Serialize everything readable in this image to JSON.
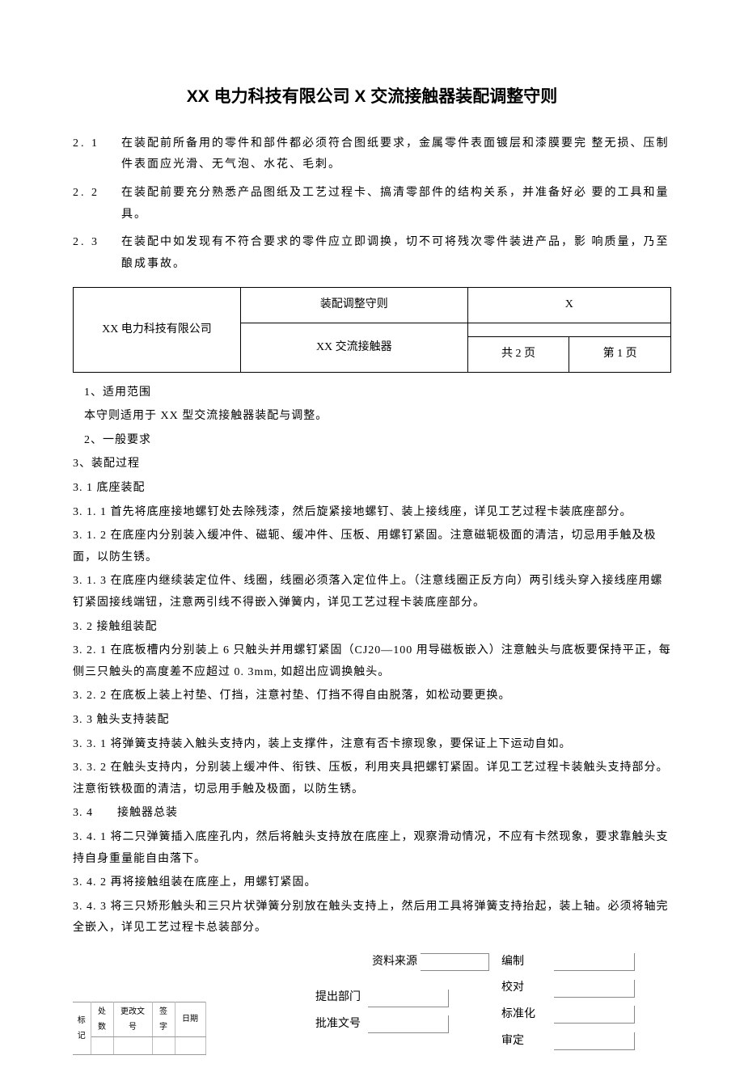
{
  "title": "XX 电力科技有限公司 X 交流接触器装配调整守则",
  "requirements": [
    {
      "num": "2. 1",
      "text": "在装配前所备用的零件和部件都必须符合图纸要求，金属零件表面镀层和漆膜要完 整无损、压制件表面应光滑、无气泡、水花、毛刺。"
    },
    {
      "num": "2. 2",
      "text": "在装配前要充分熟悉产品图纸及工艺过程卡、搞清零部件的结构关系，并准备好必 要的工具和量具。"
    },
    {
      "num": "2. 3",
      "text": "在装配中如发现有不符合要求的零件应立即调换，切不可将残次零件装进产品，影 响质量，乃至酿成事故。"
    }
  ],
  "header_table": {
    "company": "XX 电力科技有限公司",
    "rule_title": "装配调整守则",
    "code": "X",
    "product": "XX 交流接触器",
    "total_pages": "共 2 页",
    "current_page": "第 1 页"
  },
  "body": [
    {
      "cls": "indent",
      "text": "1、适用范围"
    },
    {
      "cls": "indent",
      "text": "本守则适用于 XX 型交流接触器装配与调整。"
    },
    {
      "cls": "indent",
      "text": "2、一般要求"
    },
    {
      "cls": "",
      "text": "3、装配过程"
    },
    {
      "cls": "",
      "text": "3. 1 底座装配"
    },
    {
      "cls": "",
      "text": "3. 1. 1 首先将底座接地螺钉处去除残漆，然后旋紧接地螺钉、装上接线座，详见工艺过程卡装底座部分。"
    },
    {
      "cls": "",
      "text": "3. 1. 2 在底座内分别装入缓冲件、磁轭、缓冲件、压板、用螺钉紧固。注意磁轭极面的清洁，切忌用手触及极面，以防生锈。"
    },
    {
      "cls": "",
      "text": "3. 1. 3 在底座内继续装定位件、线圈，线圈必须落入定位件上。（注意线圈正反方向）两引线头穿入接线座用螺钉紧固接线端钮，注意两引线不得嵌入弹簧内，详见工艺过程卡装底座部分。"
    },
    {
      "cls": "",
      "text": "3. 2 接触组装配"
    },
    {
      "cls": "",
      "text": "3. 2. 1 在底板槽内分别装上 6 只触头并用螺钉紧固（CJ20—100 用导磁板嵌入）注意触头与底板要保持平正，每侧三只触头的高度差不应超过 0. 3mm, 如超出应调换触头。"
    },
    {
      "cls": "",
      "text": "3. 2. 2 在底板上装上衬垫、仃挡，注意衬垫、仃挡不得自由脱落，如松动要更换。"
    },
    {
      "cls": "",
      "text": "3. 3 触头支持装配"
    },
    {
      "cls": "",
      "text": "3. 3. 1 将弹簧支持装入触头支持内，装上支撑件，注意有否卡擦现象，要保证上下运动自如。"
    },
    {
      "cls": "",
      "text": "3. 3. 2 在触头支持内，分别装上缓冲件、衔铁、压板，利用夹具把螺钉紧固。详见工艺过程卡装触头支持部分。注意衔铁极面的清洁，切忌用手触及极面，以防生锈。"
    },
    {
      "cls": "",
      "text": "3. 4　　接触器总装"
    },
    {
      "cls": "",
      "text": "3. 4. 1 将二只弹簧插入底座孔内，然后将触头支持放在底座上，观察滑动情况，不应有卡然现象，要求靠触头支持自身重量能自由落下。"
    },
    {
      "cls": "",
      "text": "3. 4. 2 再将接触组装在底座上，用螺钉紧固。"
    },
    {
      "cls": "",
      "text": "3. 4. 3 将三只矫形触头和三只片状弹簧分别放在触头支持上，然后用工具将弹簧支持抬起，装上轴。必须将轴完全嵌入，详见工艺过程卡总装部分。"
    }
  ],
  "footer": {
    "source_label": "资料来源",
    "dept_label": "提出部门",
    "approval_label": "批准文号",
    "compile": "编制",
    "check": "校对",
    "standard": "标准化",
    "approve": "审定",
    "mark_headers": [
      "标记",
      "处数",
      "更改文号",
      "签字",
      "日期"
    ]
  }
}
